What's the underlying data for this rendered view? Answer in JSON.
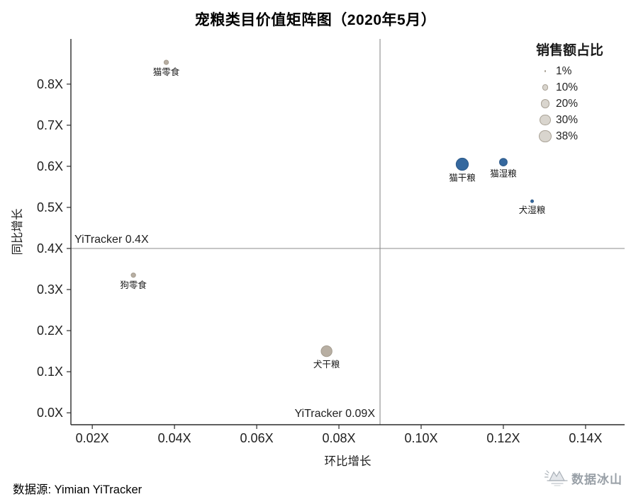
{
  "source": "数据源: Yimian YiTracker",
  "watermark": "数据冰山",
  "colors": {
    "blue": "#35689e",
    "blue_stroke": "#2d5a8a",
    "gray": "#b8afa3",
    "gray_stroke": "#a29a8d",
    "legend_fill": "#d9d5ce",
    "legend_stroke": "#a9a296",
    "ref": "#8c8c8c",
    "axis": "#2b2b2b",
    "text": "#1f1f1f",
    "bubble_label": "#1a1a1a",
    "watermark": "#99a0a7"
  },
  "chart_data": {
    "type": "scatter",
    "title": "宠粮类目价值矩阵图（2020年5月）",
    "xlabel": "环比增长",
    "ylabel": "同比增长",
    "xlim": [
      0.0148,
      0.1495
    ],
    "ylim": [
      -0.029,
      0.91
    ],
    "grid": false,
    "legend_position": "top-right",
    "x_ticks": [
      {
        "value": 0.02,
        "label": "0.02X"
      },
      {
        "value": 0.04,
        "label": "0.04X"
      },
      {
        "value": 0.06,
        "label": "0.06X"
      },
      {
        "value": 0.08,
        "label": "0.08X"
      },
      {
        "value": 0.1,
        "label": "0.10X"
      },
      {
        "value": 0.12,
        "label": "0.12X"
      },
      {
        "value": 0.14,
        "label": "0.14X"
      }
    ],
    "y_ticks": [
      {
        "value": 0.0,
        "label": "0.0X"
      },
      {
        "value": 0.1,
        "label": "0.1X"
      },
      {
        "value": 0.2,
        "label": "0.2X"
      },
      {
        "value": 0.3,
        "label": "0.3X"
      },
      {
        "value": 0.4,
        "label": "0.4X"
      },
      {
        "value": 0.5,
        "label": "0.5X"
      },
      {
        "value": 0.6,
        "label": "0.6X"
      },
      {
        "value": 0.7,
        "label": "0.7X"
      },
      {
        "value": 0.8,
        "label": "0.8X"
      }
    ],
    "ref_lines": {
      "x": {
        "value": 0.09,
        "label": "YiTracker 0.09X"
      },
      "y": {
        "value": 0.4,
        "label": "YiTracker 0.4X"
      }
    },
    "size_legend": {
      "title": "销售额占比",
      "entries": [
        {
          "label": "1%",
          "value": 1
        },
        {
          "label": "10%",
          "value": 10
        },
        {
          "label": "20%",
          "value": 20
        },
        {
          "label": "30%",
          "value": 30
        },
        {
          "label": "38%",
          "value": 38
        }
      ]
    },
    "points": [
      {
        "id": "cat-snacks",
        "name": "猫零食",
        "x": 0.038,
        "y": 0.853,
        "share": 5,
        "color": "gray"
      },
      {
        "id": "cat-dry-food",
        "name": "猫干粮",
        "x": 0.11,
        "y": 0.605,
        "share": 38,
        "color": "blue"
      },
      {
        "id": "cat-wet-food",
        "name": "猫湿粮",
        "x": 0.12,
        "y": 0.61,
        "share": 15,
        "color": "blue"
      },
      {
        "id": "dog-wet-food",
        "name": "犬湿粮",
        "x": 0.127,
        "y": 0.515,
        "share": 2,
        "color": "blue"
      },
      {
        "id": "dog-snacks",
        "name": "狗零食",
        "x": 0.03,
        "y": 0.335,
        "share": 5,
        "color": "gray"
      },
      {
        "id": "dog-dry-food",
        "name": "犬干粮",
        "x": 0.077,
        "y": 0.15,
        "share": 30,
        "color": "gray"
      }
    ]
  }
}
